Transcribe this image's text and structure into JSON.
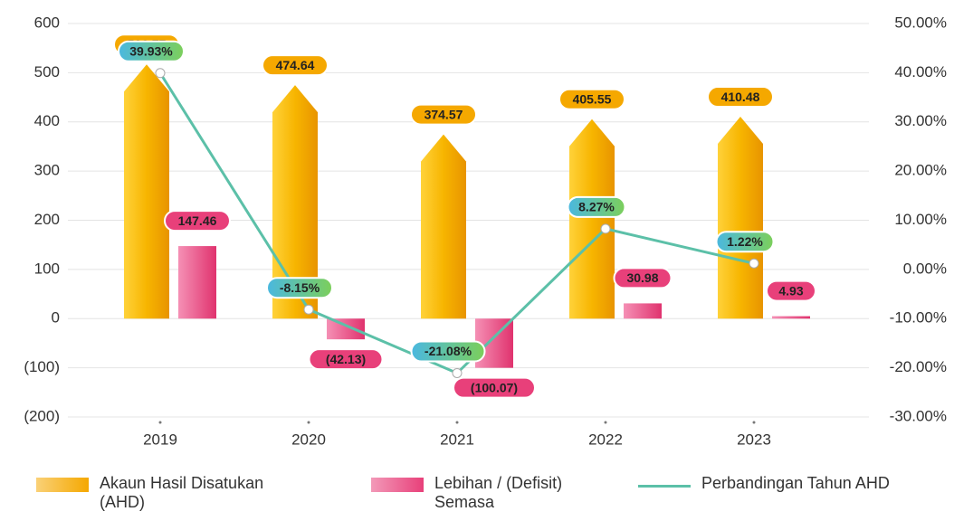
{
  "chart_data": {
    "type": "combo",
    "categories": [
      "2019",
      "2020",
      "2021",
      "2022",
      "2023"
    ],
    "series": [
      {
        "name": "Akaun Hasil Disatukan (AHD)",
        "type": "bar",
        "color": "#f5a800",
        "values": [
          516.77,
          474.64,
          374.57,
          405.55,
          410.48
        ]
      },
      {
        "name": "Lebihan / (Defisit) Semasa",
        "type": "bar",
        "color": "#e8407a",
        "values": [
          147.46,
          -42.13,
          -100.07,
          30.98,
          4.93
        ],
        "value_labels": [
          "147.46",
          "(42.13)",
          "(100.07)",
          "30.98",
          "4.93"
        ]
      },
      {
        "name": "Perbandingan Tahun AHD",
        "type": "line",
        "axis": "y2",
        "color": "#5cc0a8",
        "values": [
          39.93,
          -8.15,
          -21.08,
          8.27,
          1.22
        ],
        "value_labels": [
          "39.93%",
          "-8.15%",
          "-21.08%",
          "8.27%",
          "1.22%"
        ]
      }
    ],
    "ylim": [
      -200,
      600
    ],
    "yticks": [
      {
        "value": -200,
        "label": "(200)"
      },
      {
        "value": -100,
        "label": "(100)"
      },
      0,
      100,
      200,
      300,
      400,
      500,
      600
    ],
    "y2lim": [
      -30,
      50
    ],
    "y2ticks": [
      {
        "value": -30,
        "label": "-30.00%"
      },
      {
        "value": -20,
        "label": "-20.00%"
      },
      {
        "value": -10,
        "label": "-10.00%"
      },
      {
        "value": 0,
        "label": "0.00%"
      },
      {
        "value": 10,
        "label": "10.00%"
      },
      {
        "value": 20,
        "label": "20.00%"
      },
      {
        "value": 30,
        "label": "30.00%"
      },
      {
        "value": 40,
        "label": "40.00%"
      },
      {
        "value": 50,
        "label": "50.00%"
      }
    ],
    "grid": true,
    "legend": "bottom"
  }
}
